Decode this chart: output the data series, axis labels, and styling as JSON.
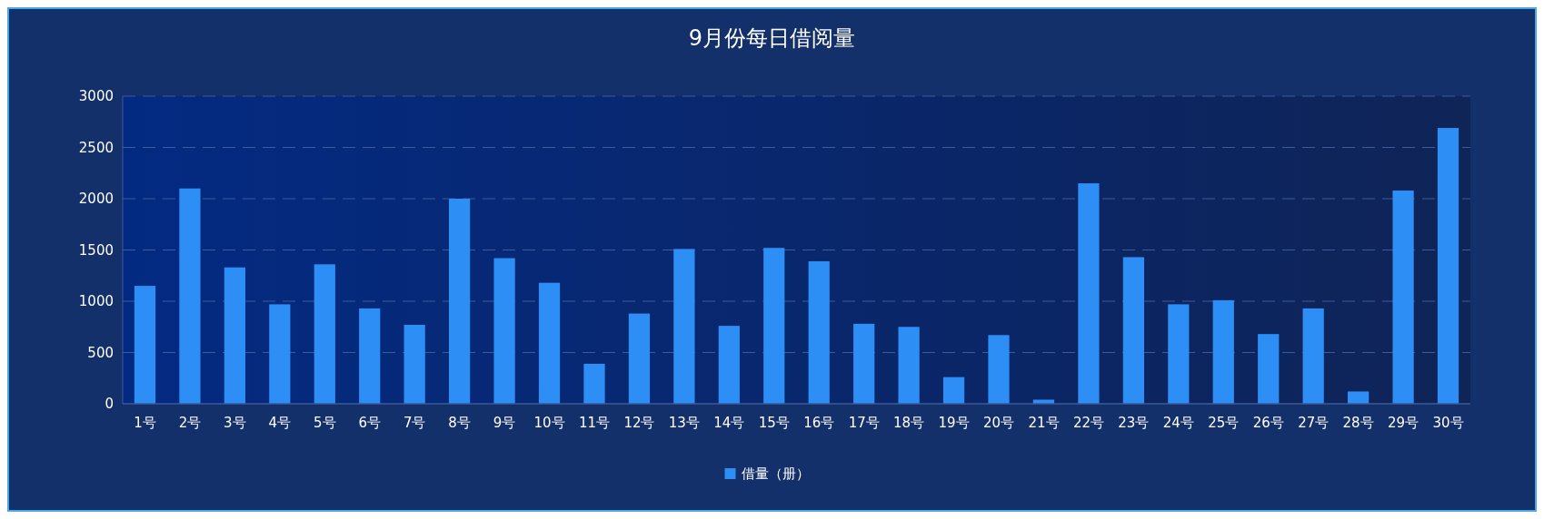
{
  "chart_data": {
    "type": "bar",
    "title": "9月份每日借阅量",
    "categories": [
      "1号",
      "2号",
      "3号",
      "4号",
      "5号",
      "6号",
      "7号",
      "8号",
      "9号",
      "10号",
      "11号",
      "12号",
      "13号",
      "14号",
      "15号",
      "16号",
      "17号",
      "18号",
      "19号",
      "20号",
      "21号",
      "22号",
      "23号",
      "24号",
      "25号",
      "26号",
      "27号",
      "28号",
      "29号",
      "30号"
    ],
    "series": [
      {
        "name": "借量（册）",
        "color": "#2d8ef5",
        "values": [
          1150,
          2100,
          1330,
          970,
          1360,
          930,
          770,
          2000,
          1420,
          1180,
          390,
          880,
          1510,
          760,
          1520,
          1390,
          780,
          750,
          260,
          670,
          40,
          2150,
          1430,
          970,
          1010,
          680,
          930,
          120,
          2080,
          2690
        ]
      }
    ],
    "ylim": [
      0,
      3000
    ],
    "yticks": [
      0,
      500,
      1000,
      1500,
      2000,
      2500,
      3000
    ],
    "grid": "y",
    "legend": "bottom"
  }
}
